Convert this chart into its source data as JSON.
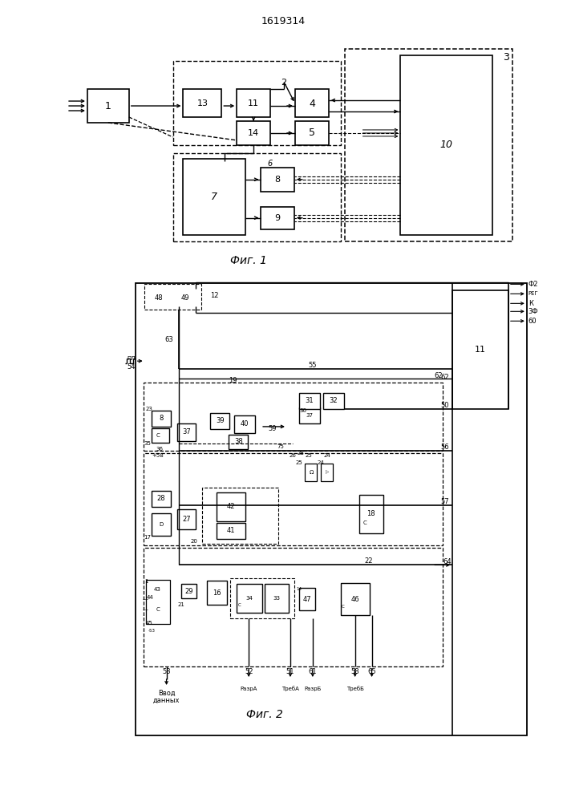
{
  "title": "1619314",
  "fig1_caption": "Фиг. 1",
  "fig2_caption": "Фиг. 2",
  "bg_color": "#ffffff",
  "line_color": "#000000"
}
